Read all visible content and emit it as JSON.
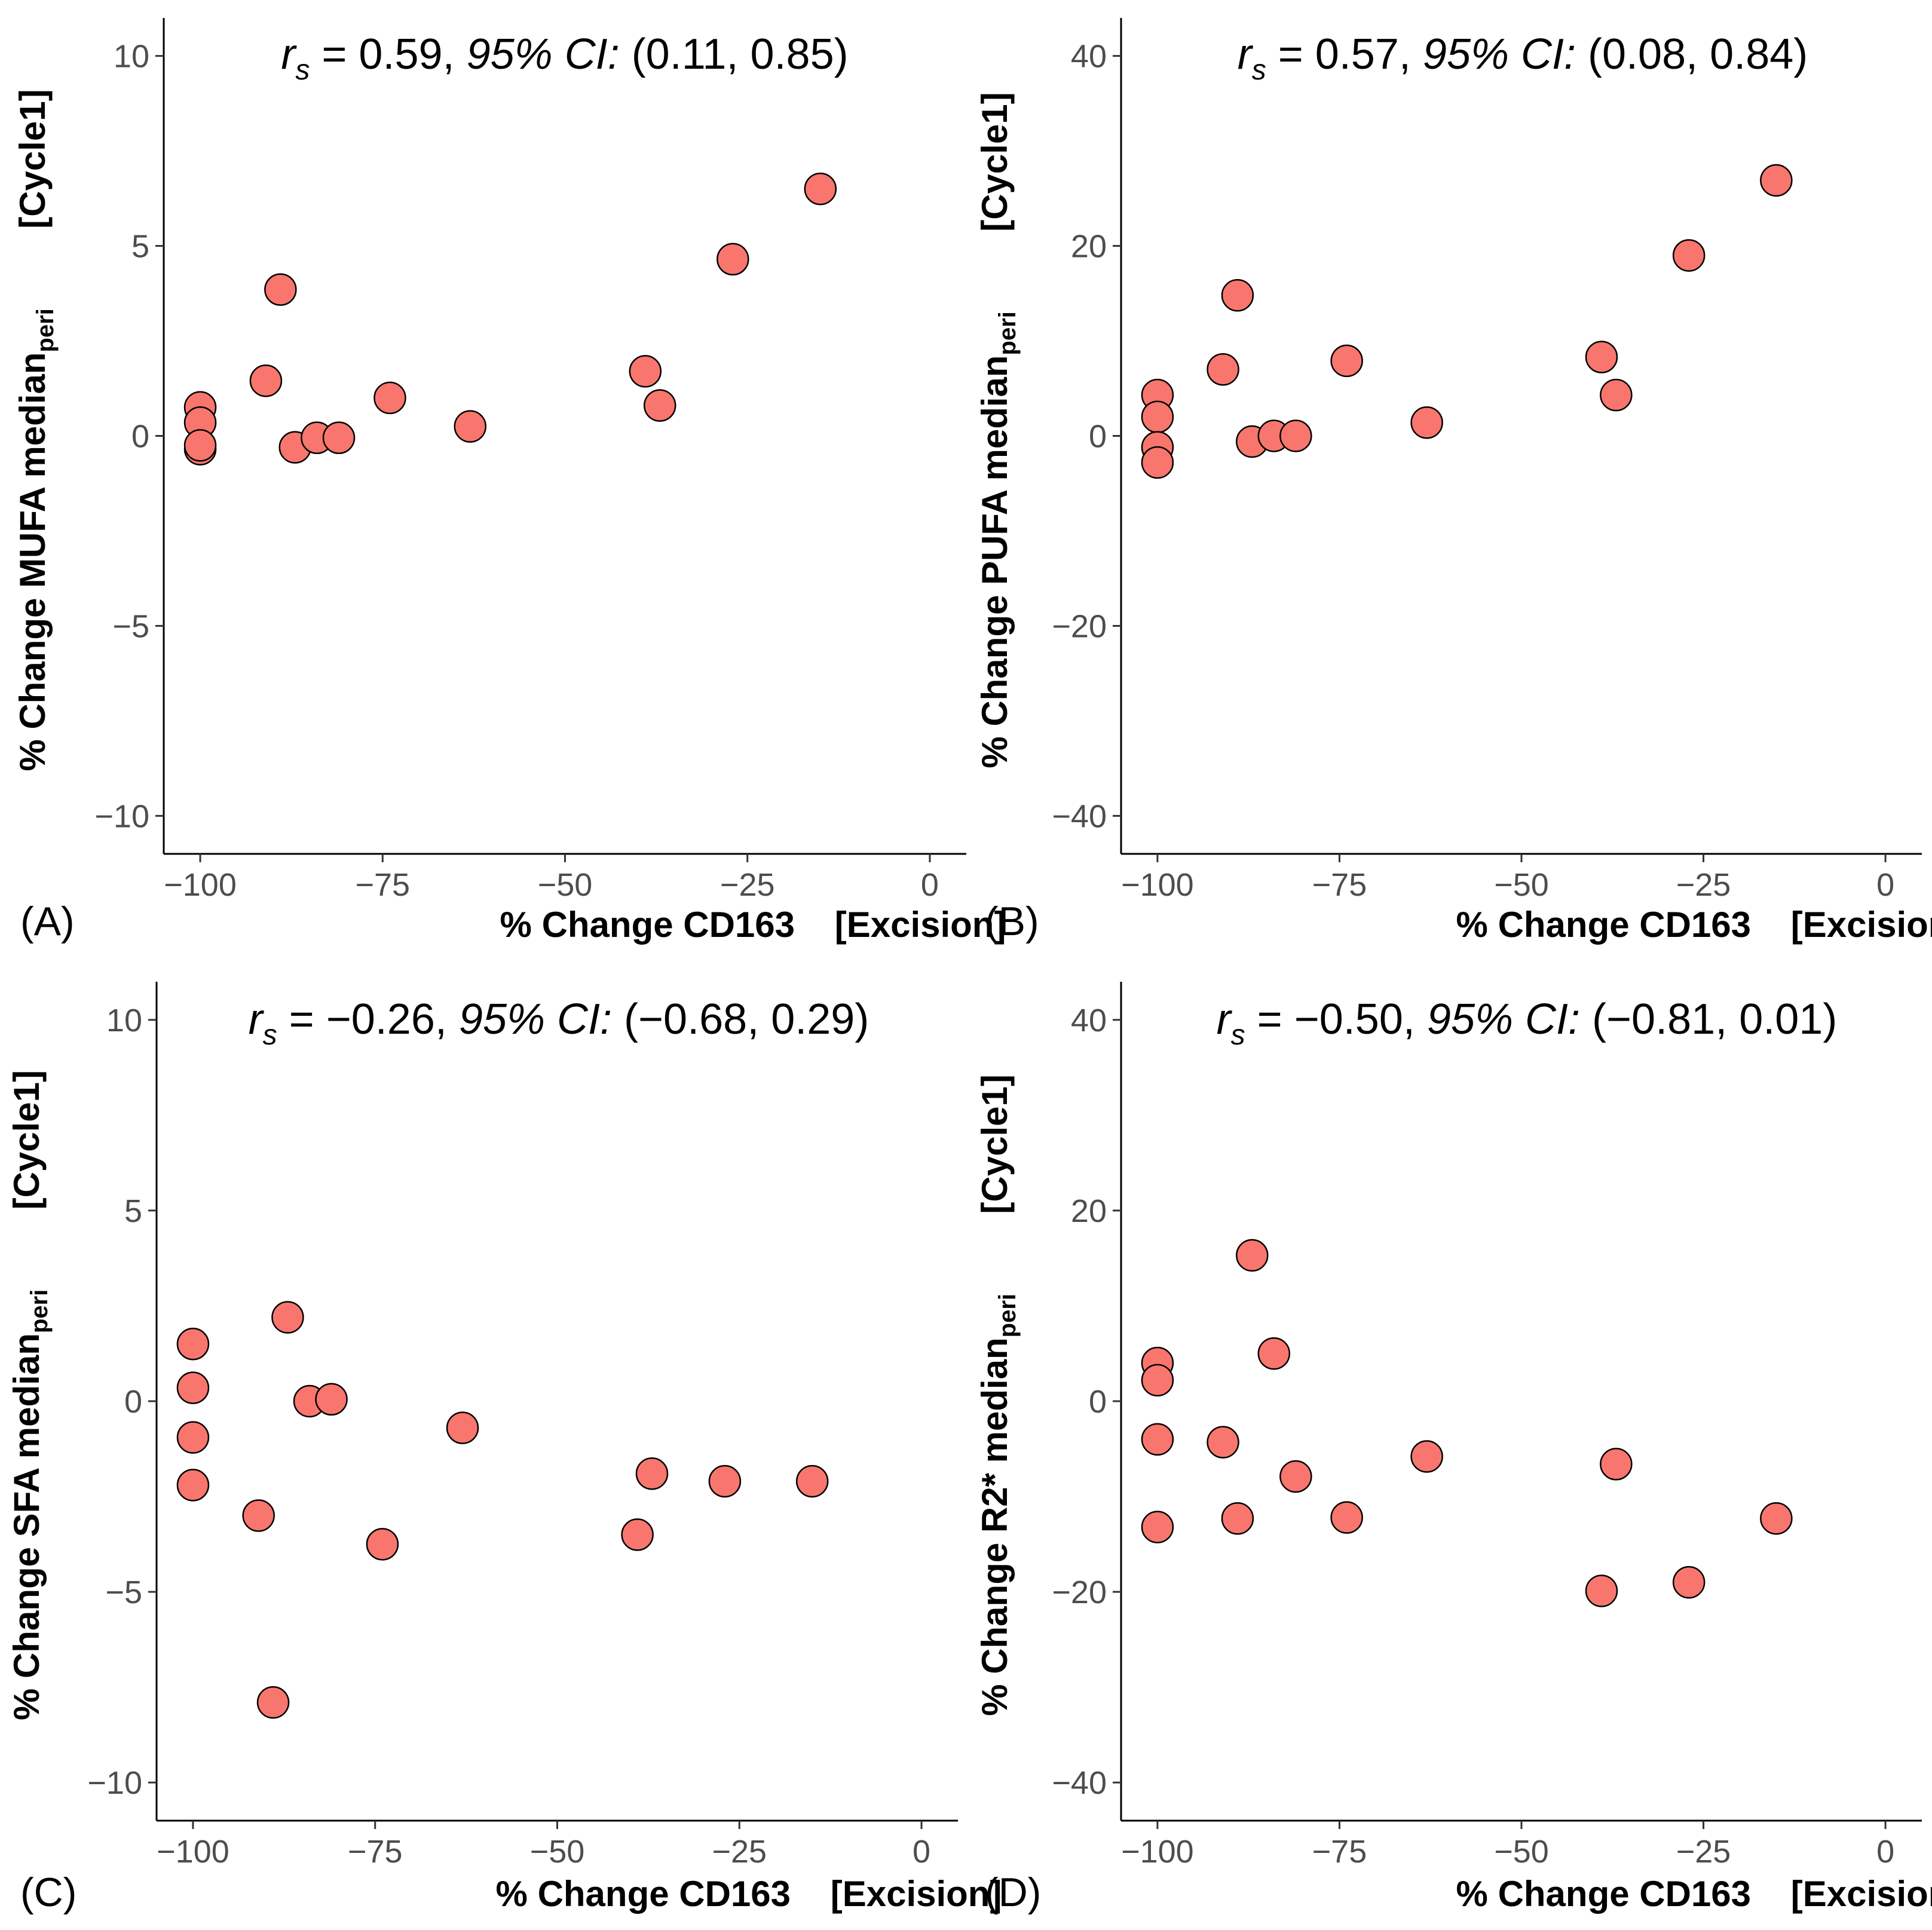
{
  "colors": {
    "point_fill": "#F8766D"
  },
  "chart_data": [
    {
      "type": "scatter",
      "panel_label": "(A)",
      "annotation": {
        "stat": "r",
        "stat_sub": "s",
        "eq": " = 0.59, ",
        "ci_label": "95% CI:",
        "ci": " (0.11, 0.85)"
      },
      "xlabel": {
        "main": "% Change CD163",
        "bracket": "[Excision]"
      },
      "ylabel": {
        "main": "% Change MUFA median",
        "sub": "peri",
        "bracket": "[Cycle1]"
      },
      "xlim": [
        -105,
        5
      ],
      "ylim": [
        -11,
        11
      ],
      "xticks": [
        -100,
        -75,
        -50,
        -25,
        0
      ],
      "xtick_labels": [
        "−100",
        "−75",
        "−50",
        "−25",
        "0"
      ],
      "yticks": [
        -10,
        -5,
        0,
        5,
        10
      ],
      "ytick_labels": [
        "−10",
        "−5",
        "0",
        "5",
        "10"
      ],
      "x": [
        -100,
        -100,
        -100,
        -100,
        -91,
        -89,
        -87,
        -84,
        -81,
        -74,
        -63,
        -39,
        -37,
        -27,
        -15
      ],
      "y": [
        0.75,
        0.35,
        -0.35,
        -0.25,
        1.45,
        3.85,
        -0.3,
        -0.05,
        -0.05,
        1.0,
        0.25,
        1.7,
        0.8,
        4.65,
        6.5
      ]
    },
    {
      "type": "scatter",
      "panel_label": "(B)",
      "annotation": {
        "stat": "r",
        "stat_sub": "s",
        "eq": " = 0.57, ",
        "ci_label": "95% CI:",
        "ci": " (0.08, 0.84)"
      },
      "xlabel": {
        "main": "% Change CD163",
        "bracket": "[Excision]"
      },
      "ylabel": {
        "main": "% Change PUFA median",
        "sub": "peri",
        "bracket": "[Cycle1]"
      },
      "xlim": [
        -105,
        5
      ],
      "ylim": [
        -44,
        44
      ],
      "xticks": [
        -100,
        -75,
        -50,
        -25,
        0
      ],
      "xtick_labels": [
        "−100",
        "−75",
        "−50",
        "−25",
        "0"
      ],
      "yticks": [
        -40,
        -20,
        0,
        20,
        40
      ],
      "ytick_labels": [
        "−40",
        "−20",
        "0",
        "20",
        "40"
      ],
      "x": [
        -100,
        -100,
        -100,
        -100,
        -91,
        -89,
        -87,
        -84,
        -81,
        -74,
        -63,
        -39,
        -37,
        -27,
        -15
      ],
      "y": [
        4.3,
        2.0,
        -1.2,
        -2.8,
        7.0,
        14.8,
        -0.6,
        0.0,
        0.0,
        7.9,
        1.4,
        8.3,
        4.3,
        19.0,
        26.9
      ]
    },
    {
      "type": "scatter",
      "panel_label": "(C)",
      "annotation": {
        "stat": "r",
        "stat_sub": "s",
        "eq": " = −0.26, ",
        "ci_label": "95% CI:",
        "ci": " (−0.68, 0.29)"
      },
      "xlabel": {
        "main": "% Change CD163",
        "bracket": "[Excision]"
      },
      "ylabel": {
        "main": "% Change SFA median",
        "sub": "peri",
        "bracket": "[Cycle1]"
      },
      "xlim": [
        -105,
        5
      ],
      "ylim": [
        -11,
        11
      ],
      "xticks": [
        -100,
        -75,
        -50,
        -25,
        0
      ],
      "xtick_labels": [
        "−100",
        "−75",
        "−50",
        "−25",
        "0"
      ],
      "yticks": [
        -10,
        -5,
        0,
        5,
        10
      ],
      "ytick_labels": [
        "−10",
        "−5",
        "0",
        "5",
        "10"
      ],
      "x": [
        -100,
        -100,
        -100,
        -100,
        -91,
        -89,
        -87,
        -84,
        -81,
        -74,
        -63,
        -39,
        -37,
        -27,
        -15
      ],
      "y": [
        1.5,
        0.35,
        -0.95,
        -2.2,
        -3.0,
        -7.9,
        2.2,
        0.0,
        0.05,
        -3.75,
        -0.7,
        -3.5,
        -1.9,
        -2.1,
        -2.1
      ]
    },
    {
      "type": "scatter",
      "panel_label": "(D)",
      "annotation": {
        "stat": "r",
        "stat_sub": "s",
        "eq": " = −0.50, ",
        "ci_label": "95% CI:",
        "ci": " (−0.81, 0.01)"
      },
      "xlabel": {
        "main": "% Change CD163",
        "bracket": "[Excision]"
      },
      "ylabel": {
        "main": "% Change R2* median",
        "sub": "peri",
        "bracket": "[Cycle1]"
      },
      "xlim": [
        -105,
        5
      ],
      "ylim": [
        -44,
        44
      ],
      "xticks": [
        -100,
        -75,
        -50,
        -25,
        0
      ],
      "xtick_labels": [
        "−100",
        "−75",
        "−50",
        "−25",
        "0"
      ],
      "yticks": [
        -40,
        -20,
        0,
        20,
        40
      ],
      "ytick_labels": [
        "−40",
        "−20",
        "0",
        "20",
        "40"
      ],
      "x": [
        -100,
        -100,
        -100,
        -100,
        -91,
        -89,
        -87,
        -84,
        -81,
        -74,
        -63,
        -39,
        -37,
        -27,
        -15
      ],
      "y": [
        4.0,
        2.2,
        -4.0,
        -13.2,
        -4.3,
        -12.3,
        15.3,
        5.0,
        -7.9,
        -12.2,
        -5.8,
        -19.9,
        -6.6,
        -19.0,
        -12.3
      ]
    }
  ]
}
